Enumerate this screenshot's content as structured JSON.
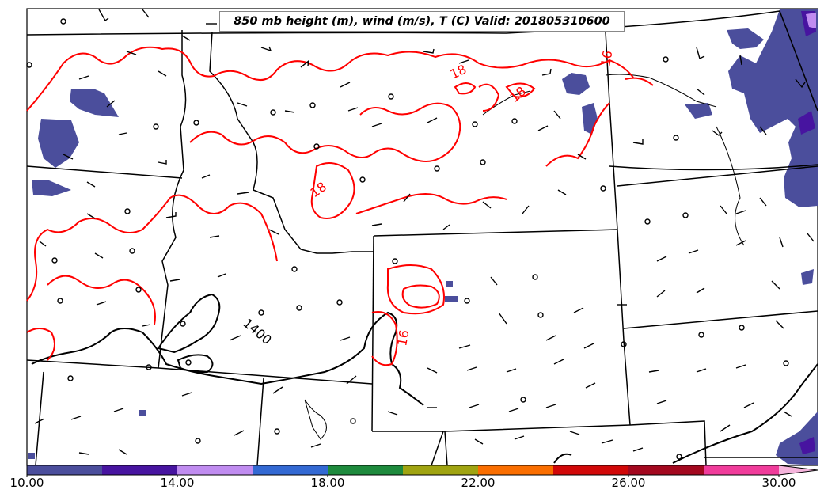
{
  "title": "850 mb height (m), wind (m/s), T (C) Valid: 201805310600",
  "colorbar": {
    "tick_labels": [
      "10.00",
      "14.00",
      "18.00",
      "22.00",
      "26.00",
      "30.00"
    ],
    "colors": [
      "#4b4e9c",
      "#4714a0",
      "#c08cf0",
      "#3369d3",
      "#1e8a3d",
      "#a0a411",
      "#fa6e00",
      "#d10808",
      "#a3081f",
      "#f03c9b",
      "#f5b4dc"
    ]
  },
  "contour_labels": {
    "temperature": [
      "18",
      "16",
      "18",
      "18",
      "16"
    ],
    "height": [
      "1400"
    ]
  },
  "colors": {
    "temperature_contour": "#ff0000",
    "height_contour": "#000000",
    "borders": "#000000"
  }
}
